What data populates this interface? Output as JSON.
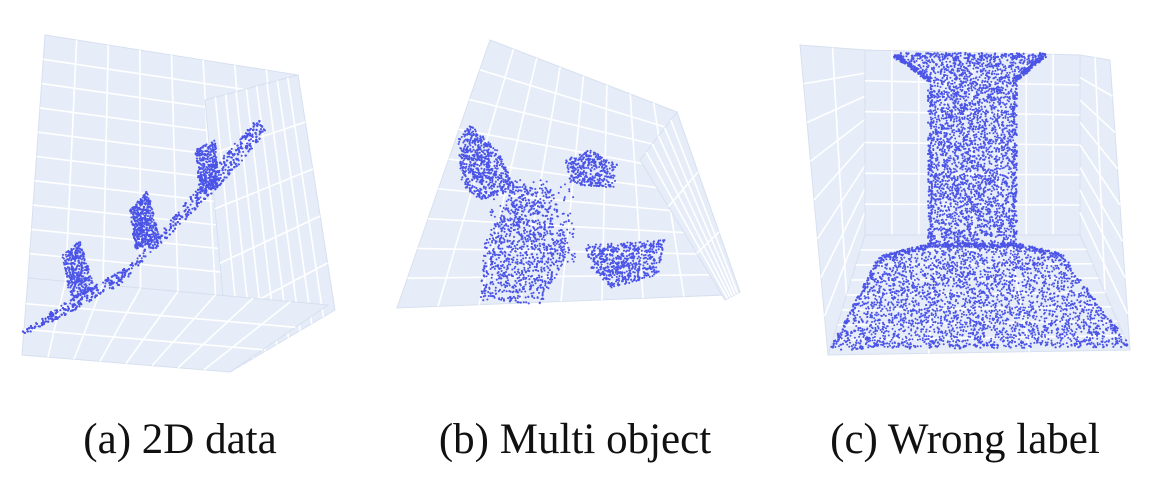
{
  "figure": {
    "point_color": "#4b54e6",
    "grid_fill": "#e6edf8",
    "grid_line": "#ffffff",
    "panels": [
      {
        "id": "a",
        "caption": "(a) 2D data"
      },
      {
        "id": "b",
        "caption": "(b) Multi object"
      },
      {
        "id": "c",
        "caption": "(c) Wrong label"
      }
    ]
  }
}
